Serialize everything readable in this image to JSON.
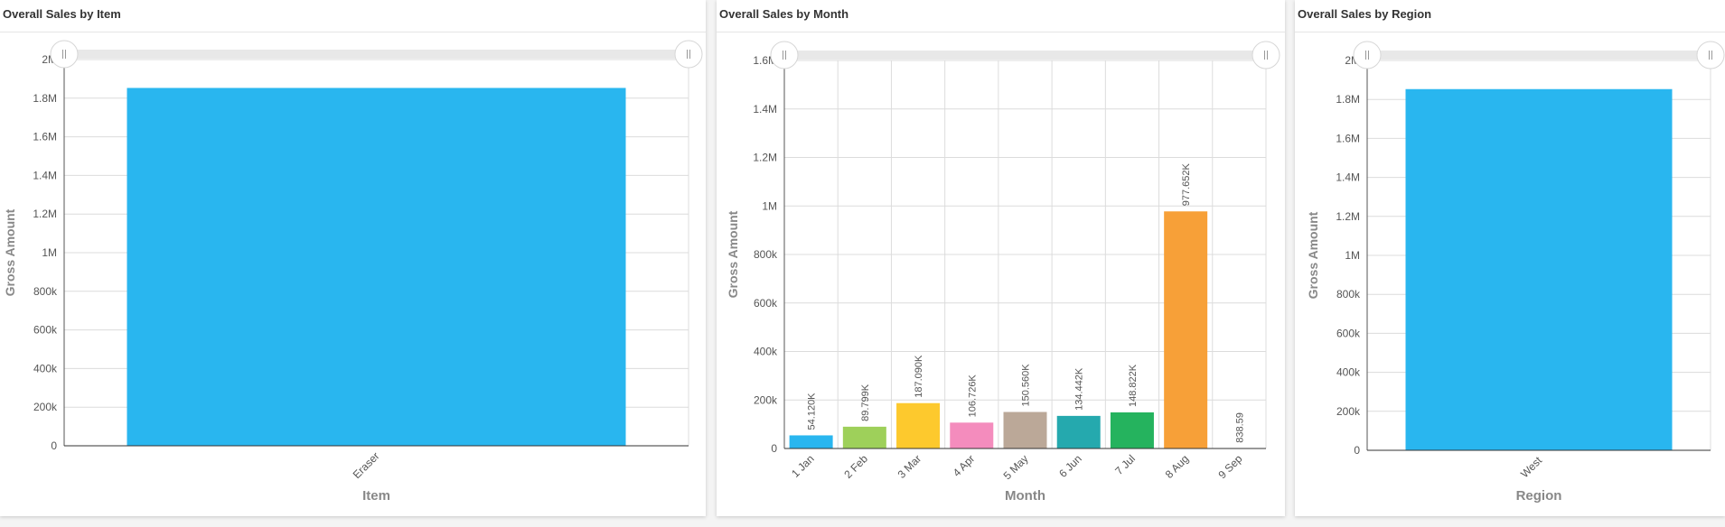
{
  "panels": [
    {
      "title": "Overall Sales by Item"
    },
    {
      "title": "Overall Sales by Month"
    },
    {
      "title": "Overall Sales by Region"
    }
  ],
  "chart_data": [
    {
      "type": "bar",
      "title": "Overall Sales by Item",
      "xlabel": "Item",
      "ylabel": "Gross Amount",
      "categories": [
        "Eraser"
      ],
      "values": [
        1853000
      ],
      "colors": [
        "#29b6ef"
      ],
      "ylim": [
        0,
        2000000
      ],
      "yticks": [
        0,
        200000,
        400000,
        600000,
        800000,
        1000000,
        1200000,
        1400000,
        1600000,
        1800000,
        2000000
      ],
      "ytick_labels": [
        "0",
        "200k",
        "400k",
        "600k",
        "800k",
        "1M",
        "1.2M",
        "1.4M",
        "1.6M",
        "1.8M",
        "2M"
      ],
      "data_labels": [
        ""
      ],
      "vertical_grid": false
    },
    {
      "type": "bar",
      "title": "Overall Sales by Month",
      "xlabel": "Month",
      "ylabel": "Gross Amount",
      "categories": [
        "1 Jan",
        "2 Feb",
        "3 Mar",
        "4 Apr",
        "5 May",
        "6 Jun",
        "7 Jul",
        "8 Aug",
        "9 Sep"
      ],
      "values": [
        54120,
        89799,
        187090,
        106726,
        150560,
        134442,
        148822,
        977652,
        838.59
      ],
      "data_labels": [
        "54.120K",
        "89.799K",
        "187.090K",
        "106.726K",
        "150.560K",
        "134.442K",
        "148.822K",
        "977.652K",
        "838.59"
      ],
      "colors": [
        "#29b6ef",
        "#9ed05a",
        "#fdc92d",
        "#f48cbd",
        "#bba898",
        "#25a9ae",
        "#25b35e",
        "#f7a038",
        "#8a7cd1"
      ],
      "ylim": [
        0,
        1600000
      ],
      "yticks": [
        0,
        200000,
        400000,
        600000,
        800000,
        1000000,
        1200000,
        1400000,
        1600000
      ],
      "ytick_labels": [
        "0",
        "200k",
        "400k",
        "600k",
        "800k",
        "1M",
        "1.2M",
        "1.4M",
        "1.6M"
      ],
      "vertical_grid": true
    },
    {
      "type": "bar",
      "title": "Overall Sales by Region",
      "xlabel": "Region",
      "ylabel": "Gross Amount",
      "categories": [
        "West"
      ],
      "values": [
        1853000
      ],
      "colors": [
        "#29b6ef"
      ],
      "ylim": [
        0,
        2000000
      ],
      "yticks": [
        0,
        200000,
        400000,
        600000,
        800000,
        1000000,
        1200000,
        1400000,
        1600000,
        1800000,
        2000000
      ],
      "ytick_labels": [
        "0",
        "200k",
        "400k",
        "600k",
        "800k",
        "1M",
        "1.2M",
        "1.4M",
        "1.6M",
        "1.8M",
        "2M"
      ],
      "data_labels": [
        ""
      ],
      "vertical_grid": false
    }
  ]
}
